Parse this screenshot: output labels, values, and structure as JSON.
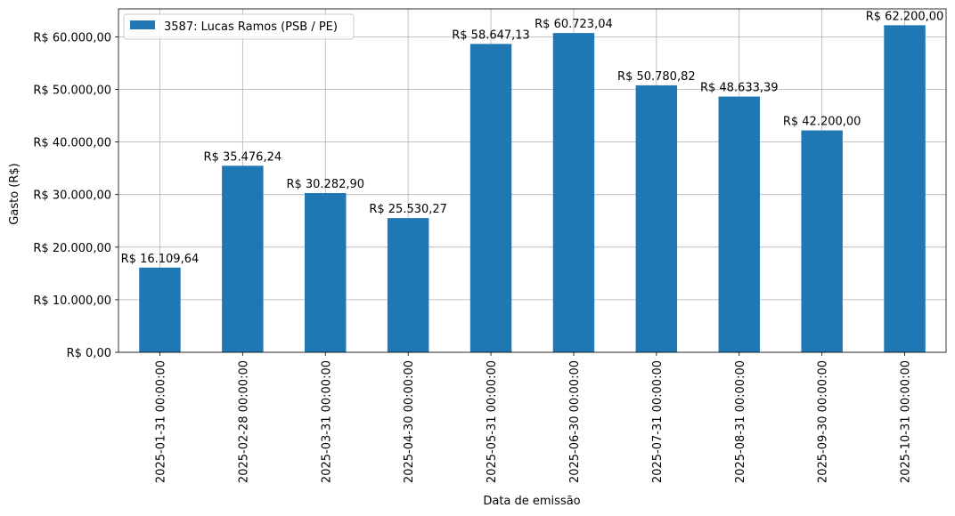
{
  "chart_data": {
    "type": "bar",
    "title": "",
    "xlabel": "Data de emissão",
    "ylabel": "Gasto (R$)",
    "categories": [
      "2025-01-31 00:00:00",
      "2025-02-28 00:00:00",
      "2025-03-31 00:00:00",
      "2025-04-30 00:00:00",
      "2025-05-31 00:00:00",
      "2025-06-30 00:00:00",
      "2025-07-31 00:00:00",
      "2025-08-31 00:00:00",
      "2025-09-30 00:00:00",
      "2025-10-31 00:00:00"
    ],
    "series": [
      {
        "name": "3587: Lucas Ramos (PSB / PE)",
        "color": "#1f77b4",
        "values": [
          16109.64,
          35476.24,
          30282.9,
          25530.27,
          58647.13,
          60723.04,
          50780.82,
          48633.39,
          42200.0,
          62200.0
        ],
        "data_labels": [
          "R$ 16.109,64",
          "R$ 35.476,24",
          "R$ 30.282,90",
          "R$ 25.530,27",
          "R$ 58.647,13",
          "R$ 60.723,04",
          "R$ 50.780,82",
          "R$ 48.633,39",
          "R$ 42.200,00",
          "R$ 62.200,00"
        ]
      }
    ],
    "y_ticks": [
      0,
      10000,
      20000,
      30000,
      40000,
      50000,
      60000
    ],
    "y_tick_labels": [
      "R$ 0,00",
      "R$ 10.000,00",
      "R$ 20.000,00",
      "R$ 30.000,00",
      "R$ 40.000,00",
      "R$ 50.000,00",
      "R$ 60.000,00"
    ],
    "ylim": [
      0,
      65310
    ],
    "grid": true,
    "legend_position": "top-left"
  }
}
